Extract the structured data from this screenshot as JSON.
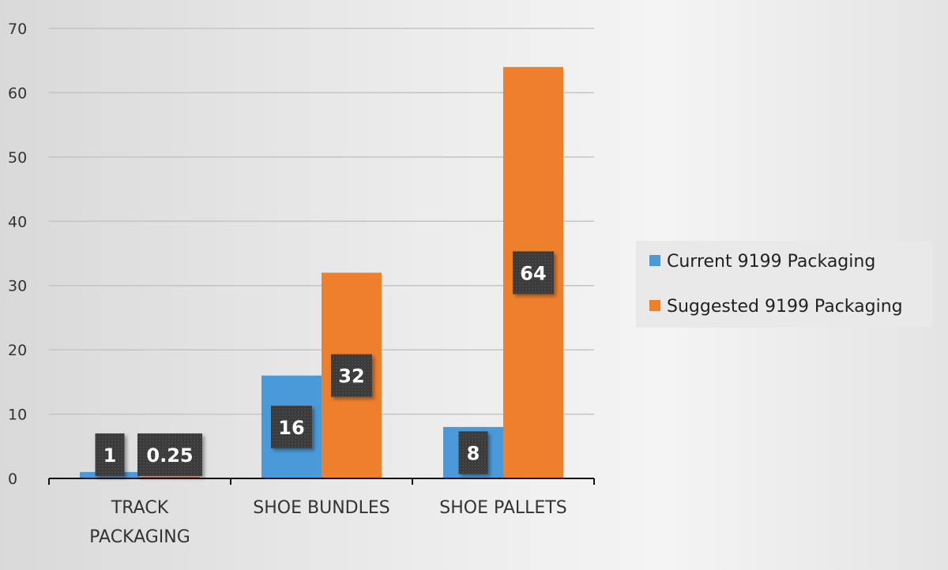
{
  "chart_data": {
    "type": "bar",
    "title": "",
    "xlabel": "",
    "ylabel": "",
    "categories": [
      [
        "TRACK",
        "PACKAGING"
      ],
      [
        "SHOE BUNDLES"
      ],
      [
        "SHOE PALLETS"
      ]
    ],
    "series": [
      {
        "name": "Current 9199 Packaging",
        "values": [
          1,
          16,
          8
        ],
        "labels": [
          "1",
          "16",
          "8"
        ],
        "color": "#4a9ad9"
      },
      {
        "name": "Suggested 9199 Packaging",
        "values": [
          0.25,
          32,
          64
        ],
        "labels": [
          "0.25",
          "32",
          "64"
        ],
        "color": "#ee7f2d"
      }
    ],
    "ylim": [
      0,
      70
    ],
    "yticks": [
      0,
      10,
      20,
      30,
      40,
      50,
      60,
      70
    ],
    "grid": true,
    "legend": "right",
    "data_label_style": {
      "background": "#333333",
      "text": "#ffffff"
    }
  }
}
